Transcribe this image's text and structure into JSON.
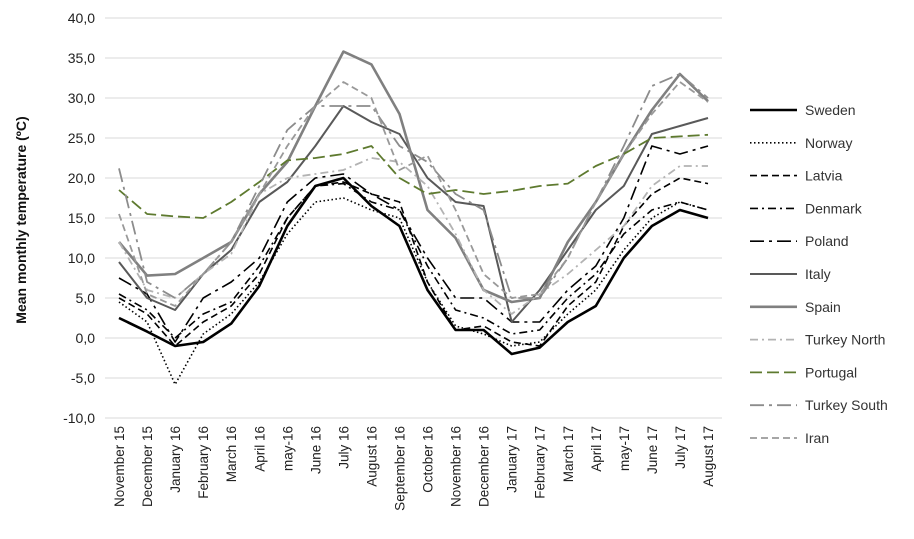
{
  "chart_data": {
    "type": "line",
    "title": "",
    "xlabel": "",
    "ylabel": "Mean monthly temperature (ºC)",
    "ylim": [
      -10,
      40
    ],
    "y_ticks": [
      "-10,0",
      "-5,0",
      "0,0",
      "5,0",
      "10,0",
      "15,0",
      "20,0",
      "25,0",
      "30,0",
      "35,0",
      "40,0"
    ],
    "grid": "horizontal",
    "legend": "right",
    "categories": [
      "November 15",
      "December 15",
      "January 16",
      "February 16",
      "March 16",
      "April 16",
      "may-16",
      "June 16",
      "July 16",
      "August 16",
      "September 16",
      "October 16",
      "November 16",
      "December 16",
      "January 17",
      "February 17",
      "March 17",
      "April 17",
      "may-17",
      "June 17",
      "July 17",
      "August 17"
    ],
    "series": [
      {
        "name": "Sweden",
        "color": "#000000",
        "dash": "solid",
        "width": 2.6,
        "values": [
          2.5,
          0.8,
          -1.0,
          -0.5,
          1.8,
          6.5,
          14.0,
          19.0,
          20.0,
          16.5,
          14.0,
          6.0,
          1.0,
          1.0,
          -2.0,
          -1.2,
          2.0,
          4.0,
          10.0,
          14.0,
          16.0,
          15.0
        ]
      },
      {
        "name": "Norway",
        "color": "#000000",
        "dash": "dotted",
        "width": 1.6,
        "values": [
          4.5,
          2.0,
          -5.8,
          0.5,
          3.0,
          7.0,
          13.0,
          17.0,
          17.5,
          16.0,
          15.0,
          7.0,
          1.5,
          0.5,
          -1.0,
          -0.5,
          3.0,
          6.0,
          11.0,
          15.0,
          17.0,
          16.0
        ]
      },
      {
        "name": "Latvia",
        "color": "#000000",
        "dash": "dash",
        "width": 1.6,
        "values": [
          5.0,
          3.0,
          -1.0,
          2.0,
          4.0,
          8.0,
          15.0,
          19.0,
          19.5,
          18.0,
          17.0,
          7.0,
          1.0,
          1.5,
          -0.5,
          -1.0,
          4.0,
          7.0,
          14.0,
          18.0,
          20.0,
          19.3
        ]
      },
      {
        "name": "Denmark",
        "color": "#000000",
        "dash": "dashdot",
        "width": 1.6,
        "values": [
          5.5,
          3.5,
          0.0,
          3.0,
          4.5,
          9.0,
          15.0,
          19.0,
          19.3,
          17.0,
          16.0,
          9.0,
          3.5,
          2.5,
          0.5,
          1.0,
          5.0,
          8.0,
          13.0,
          16.0,
          17.0,
          16.0
        ]
      },
      {
        "name": "Poland",
        "color": "#000000",
        "dash": "longdashdot",
        "width": 1.6,
        "values": [
          7.5,
          5.5,
          -0.5,
          5.0,
          7.0,
          10.0,
          17.0,
          20.0,
          20.5,
          18.0,
          16.0,
          10.0,
          5.0,
          5.0,
          2.0,
          2.0,
          6.0,
          9.0,
          15.0,
          24.0,
          23.0,
          24.0
        ]
      },
      {
        "name": "Italy",
        "color": "#595959",
        "dash": "solid",
        "width": 2.0,
        "values": [
          9.5,
          5.0,
          3.5,
          8.0,
          11.0,
          17.0,
          19.5,
          24.0,
          29.0,
          27.0,
          25.5,
          20.0,
          17.0,
          16.5,
          2.0,
          6.0,
          11.0,
          16.0,
          19.0,
          25.5,
          26.5,
          27.5
        ]
      },
      {
        "name": "Spain",
        "color": "#808080",
        "dash": "solid",
        "width": 2.6,
        "values": [
          12.0,
          7.8,
          8.0,
          10.0,
          12.0,
          18.0,
          22.0,
          29.0,
          35.8,
          34.2,
          28.0,
          16.0,
          12.5,
          6.0,
          4.5,
          5.0,
          12.0,
          17.0,
          23.0,
          28.5,
          33.0,
          29.6
        ]
      },
      {
        "name": "Turkey North",
        "color": "#b3b3b3",
        "dash": "dashdot",
        "width": 1.8,
        "values": [
          12.0,
          6.0,
          5.0,
          8.0,
          10.5,
          18.0,
          20.0,
          20.5,
          21.0,
          22.5,
          22.0,
          19.0,
          13.0,
          6.0,
          3.0,
          5.5,
          8.0,
          11.0,
          14.0,
          19.0,
          21.5,
          21.5
        ]
      },
      {
        "name": "Portugal",
        "color": "#5e7a2f",
        "dash": "longdash",
        "width": 1.8,
        "values": [
          18.5,
          15.5,
          15.2,
          15.0,
          17.0,
          19.5,
          22.2,
          22.5,
          23.0,
          24.0,
          20.0,
          18.0,
          18.5,
          18.0,
          18.4,
          19.0,
          19.3,
          21.5,
          23.0,
          25.0,
          25.2,
          25.4
        ]
      },
      {
        "name": "Turkey South",
        "color": "#8c8c8c",
        "dash": "longdashdot",
        "width": 1.8,
        "values": [
          21.2,
          7.0,
          5.0,
          8.0,
          12.0,
          19.0,
          26.0,
          29.0,
          29.0,
          29.0,
          24.0,
          22.0,
          18.0,
          16.0,
          5.0,
          5.0,
          10.0,
          17.0,
          24.0,
          31.5,
          33.0,
          30.0
        ]
      },
      {
        "name": "Iran",
        "color": "#999999",
        "dash": "dash",
        "width": 1.8,
        "values": [
          15.5,
          5.5,
          4.0,
          8.0,
          12.0,
          18.0,
          24.0,
          29.0,
          32.0,
          30.0,
          21.0,
          22.8,
          16.0,
          8.0,
          5.0,
          5.5,
          10.0,
          17.0,
          23.0,
          28.0,
          32.0,
          29.5
        ]
      }
    ]
  }
}
